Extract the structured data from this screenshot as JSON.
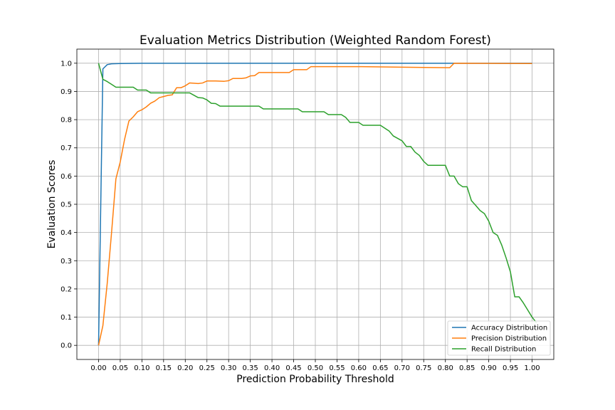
{
  "chart_data": {
    "type": "line",
    "title": "Evaluation Metrics Distribution (Weighted Random Forest)",
    "xlabel": "Prediction Probability Threshold",
    "ylabel": "Evaluation Scores",
    "xlim": [
      -0.05,
      1.05
    ],
    "ylim": [
      -0.05,
      1.05
    ],
    "grid": true,
    "legend_position": "bottom-right",
    "xticks": [
      "0.00",
      "0.05",
      "0.10",
      "0.15",
      "0.20",
      "0.25",
      "0.30",
      "0.35",
      "0.40",
      "0.45",
      "0.50",
      "0.55",
      "0.60",
      "0.65",
      "0.70",
      "0.75",
      "0.80",
      "0.85",
      "0.90",
      "0.95",
      "1.00"
    ],
    "yticks": [
      "0.0",
      "0.1",
      "0.2",
      "0.3",
      "0.4",
      "0.5",
      "0.6",
      "0.7",
      "0.8",
      "0.9",
      "1.0"
    ],
    "series": [
      {
        "name": "Accuracy Distribution",
        "color": "#1f77b4",
        "points": [
          [
            0.0,
            0.0
          ],
          [
            0.01,
            0.98
          ],
          [
            0.02,
            0.995
          ],
          [
            0.03,
            0.998
          ],
          [
            0.05,
            0.999
          ],
          [
            0.1,
            1.0
          ],
          [
            0.2,
            1.0
          ],
          [
            0.5,
            1.0
          ],
          [
            0.8,
            1.0
          ],
          [
            0.85,
            1.0
          ],
          [
            0.9,
            1.0
          ],
          [
            1.0,
            1.0
          ]
        ]
      },
      {
        "name": "Precision Distribution",
        "color": "#ff7f0e",
        "points": [
          [
            0.0,
            0.0
          ],
          [
            0.01,
            0.07
          ],
          [
            0.02,
            0.22
          ],
          [
            0.03,
            0.4
          ],
          [
            0.04,
            0.59
          ],
          [
            0.05,
            0.65
          ],
          [
            0.06,
            0.73
          ],
          [
            0.07,
            0.795
          ],
          [
            0.08,
            0.81
          ],
          [
            0.09,
            0.828
          ],
          [
            0.1,
            0.835
          ],
          [
            0.11,
            0.845
          ],
          [
            0.12,
            0.858
          ],
          [
            0.13,
            0.866
          ],
          [
            0.14,
            0.878
          ],
          [
            0.15,
            0.882
          ],
          [
            0.16,
            0.886
          ],
          [
            0.17,
            0.888
          ],
          [
            0.18,
            0.913
          ],
          [
            0.19,
            0.913
          ],
          [
            0.2,
            0.92
          ],
          [
            0.21,
            0.93
          ],
          [
            0.23,
            0.928
          ],
          [
            0.24,
            0.93
          ],
          [
            0.25,
            0.937
          ],
          [
            0.27,
            0.937
          ],
          [
            0.29,
            0.936
          ],
          [
            0.3,
            0.938
          ],
          [
            0.31,
            0.946
          ],
          [
            0.33,
            0.946
          ],
          [
            0.34,
            0.948
          ],
          [
            0.35,
            0.955
          ],
          [
            0.36,
            0.956
          ],
          [
            0.37,
            0.967
          ],
          [
            0.44,
            0.967
          ],
          [
            0.45,
            0.977
          ],
          [
            0.48,
            0.977
          ],
          [
            0.49,
            0.988
          ],
          [
            0.6,
            0.988
          ],
          [
            0.7,
            0.986
          ],
          [
            0.75,
            0.985
          ],
          [
            0.81,
            0.984
          ],
          [
            0.82,
            1.0
          ],
          [
            1.0,
            0.999
          ]
        ]
      },
      {
        "name": "Recall Distribution",
        "color": "#2ca02c",
        "points": [
          [
            0.0,
            1.0
          ],
          [
            0.01,
            0.943
          ],
          [
            0.02,
            0.935
          ],
          [
            0.03,
            0.925
          ],
          [
            0.04,
            0.915
          ],
          [
            0.08,
            0.915
          ],
          [
            0.09,
            0.905
          ],
          [
            0.11,
            0.905
          ],
          [
            0.12,
            0.895
          ],
          [
            0.21,
            0.895
          ],
          [
            0.23,
            0.878
          ],
          [
            0.24,
            0.877
          ],
          [
            0.25,
            0.87
          ],
          [
            0.26,
            0.858
          ],
          [
            0.27,
            0.857
          ],
          [
            0.28,
            0.848
          ],
          [
            0.37,
            0.848
          ],
          [
            0.38,
            0.838
          ],
          [
            0.46,
            0.838
          ],
          [
            0.47,
            0.828
          ],
          [
            0.52,
            0.828
          ],
          [
            0.53,
            0.818
          ],
          [
            0.56,
            0.818
          ],
          [
            0.57,
            0.808
          ],
          [
            0.58,
            0.79
          ],
          [
            0.6,
            0.79
          ],
          [
            0.61,
            0.78
          ],
          [
            0.65,
            0.78
          ],
          [
            0.66,
            0.77
          ],
          [
            0.67,
            0.76
          ],
          [
            0.68,
            0.742
          ],
          [
            0.7,
            0.725
          ],
          [
            0.71,
            0.705
          ],
          [
            0.72,
            0.705
          ],
          [
            0.73,
            0.685
          ],
          [
            0.74,
            0.673
          ],
          [
            0.75,
            0.652
          ],
          [
            0.76,
            0.638
          ],
          [
            0.8,
            0.638
          ],
          [
            0.81,
            0.6
          ],
          [
            0.82,
            0.6
          ],
          [
            0.83,
            0.573
          ],
          [
            0.84,
            0.562
          ],
          [
            0.85,
            0.562
          ],
          [
            0.86,
            0.513
          ],
          [
            0.87,
            0.496
          ],
          [
            0.88,
            0.478
          ],
          [
            0.89,
            0.467
          ],
          [
            0.9,
            0.44
          ],
          [
            0.91,
            0.4
          ],
          [
            0.92,
            0.39
          ],
          [
            0.93,
            0.355
          ],
          [
            0.94,
            0.31
          ],
          [
            0.95,
            0.26
          ],
          [
            0.96,
            0.172
          ],
          [
            0.97,
            0.172
          ],
          [
            0.98,
            0.15
          ],
          [
            0.99,
            0.125
          ],
          [
            1.0,
            0.1
          ],
          [
            1.01,
            0.08
          ]
        ]
      }
    ]
  }
}
